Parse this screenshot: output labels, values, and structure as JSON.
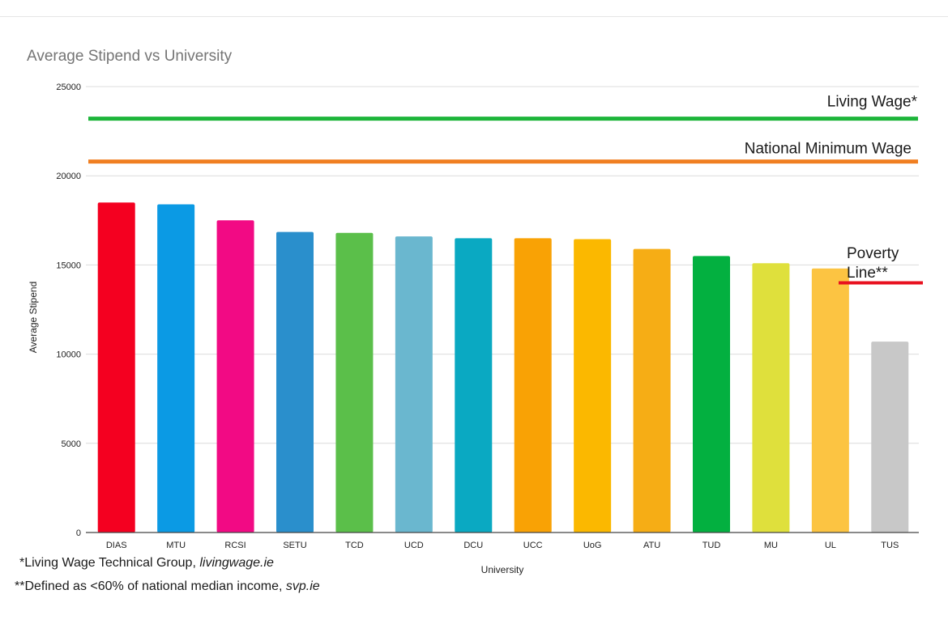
{
  "chart_data": {
    "type": "bar",
    "title": "Average Stipend vs University",
    "xlabel": "University",
    "ylabel": "Average Stipend",
    "ylim": [
      0,
      25000
    ],
    "yticks": [
      "0",
      "5000",
      "10000",
      "15000",
      "20000",
      "25000"
    ],
    "grid": true,
    "categories": [
      "DIAS",
      "MTU",
      "RCSI",
      "SETU",
      "TCD",
      "UCD",
      "DCU",
      "UCC",
      "UoG",
      "ATU",
      "TUD",
      "MU",
      "UL",
      "TUS"
    ],
    "values": [
      18500,
      18400,
      17500,
      16850,
      16800,
      16600,
      16500,
      16500,
      16450,
      15900,
      15500,
      15100,
      14800,
      10700
    ],
    "colors": [
      "#f40020",
      "#0b9ae4",
      "#f20a84",
      "#2a8fcc",
      "#5bbf4a",
      "#6ab7cf",
      "#0aa9c2",
      "#f9a205",
      "#fbb800",
      "#f6ad15",
      "#03b040",
      "#dfe03c",
      "#fcc442",
      "#c8c8c8"
    ],
    "reference_lines": [
      {
        "name": "Living Wage*",
        "value": 23200,
        "color": "#1db53a"
      },
      {
        "name": "National Minimum Wage",
        "value": 20800,
        "color": "#f07f21"
      },
      {
        "name": "Poverty Line**",
        "line1": "Poverty",
        "line2": "Line**",
        "value": 14000,
        "color": "#e8111f"
      }
    ]
  },
  "footnotes": {
    "living_wage_text": "*Living Wage Technical Group, ",
    "living_wage_source": "livingwage.ie",
    "poverty_text": "**Defined as <60% of national median income, ",
    "poverty_source": "svp.ie"
  }
}
